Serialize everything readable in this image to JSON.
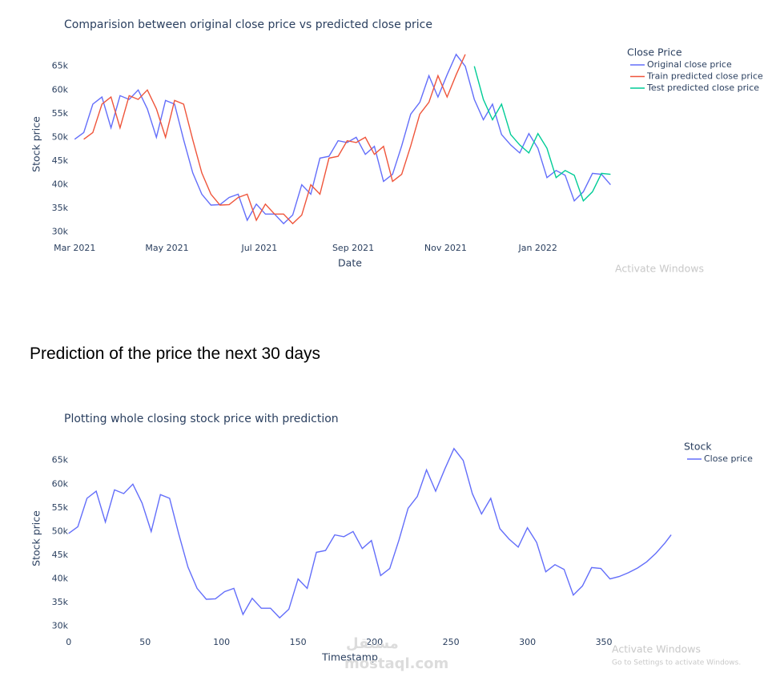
{
  "heading": "Prediction of the price the next 30 days",
  "watermarks": [
    "Activate Windows",
    "Activate Windows",
    "Go to Settings to activate Windows.",
    "mostaql.com",
    "مستقل"
  ],
  "chart_data": [
    {
      "type": "line",
      "title": "Comparision between original close price vs predicted close price",
      "x_label": "Date",
      "y_label": "Stock price",
      "legend_title": "Close Price",
      "legend": "top-right",
      "grid": false,
      "xlim": [
        "2021-02-22",
        "2022-02-22"
      ],
      "xticks": [
        {
          "value": "2021-03-01",
          "label": "Mar 2021"
        },
        {
          "value": "2021-05-01",
          "label": "May 2021"
        },
        {
          "value": "2021-07-01",
          "label": "Jul 2021"
        },
        {
          "value": "2021-09-01",
          "label": "Sep 2021"
        },
        {
          "value": "2021-11-01",
          "label": "Nov 2021"
        },
        {
          "value": "2022-01-01",
          "label": "Jan 2022"
        }
      ],
      "ylim": [
        28600,
        68500
      ],
      "yticks": [
        {
          "value": 30000,
          "label": "30k"
        },
        {
          "value": 35000,
          "label": "35k"
        },
        {
          "value": 40000,
          "label": "40k"
        },
        {
          "value": 45000,
          "label": "45k"
        },
        {
          "value": 50000,
          "label": "50k"
        },
        {
          "value": 55000,
          "label": "55k"
        },
        {
          "value": 60000,
          "label": "60k"
        },
        {
          "value": 65000,
          "label": "65k"
        }
      ],
      "series": [
        {
          "name": "Original close price",
          "color": "#636efa",
          "x": [
            "2021-03-01",
            "2021-03-07",
            "2021-03-13",
            "2021-03-19",
            "2021-03-25",
            "2021-03-31",
            "2021-04-06",
            "2021-04-12",
            "2021-04-18",
            "2021-04-24",
            "2021-04-30",
            "2021-05-06",
            "2021-05-12",
            "2021-05-18",
            "2021-05-24",
            "2021-05-30",
            "2021-06-05",
            "2021-06-11",
            "2021-06-17",
            "2021-06-23",
            "2021-06-29",
            "2021-07-05",
            "2021-07-11",
            "2021-07-17",
            "2021-07-23",
            "2021-07-29",
            "2021-08-04",
            "2021-08-10",
            "2021-08-16",
            "2021-08-22",
            "2021-08-28",
            "2021-09-03",
            "2021-09-09",
            "2021-09-15",
            "2021-09-21",
            "2021-09-27",
            "2021-10-03",
            "2021-10-09",
            "2021-10-15",
            "2021-10-21",
            "2021-10-27",
            "2021-11-02",
            "2021-11-08",
            "2021-11-14",
            "2021-11-20",
            "2021-11-26",
            "2021-12-02",
            "2021-12-08",
            "2021-12-14",
            "2021-12-20",
            "2021-12-26",
            "2022-01-01",
            "2022-01-07",
            "2022-01-13",
            "2022-01-19",
            "2022-01-25",
            "2022-01-31",
            "2022-02-06",
            "2022-02-12",
            "2022-02-18"
          ],
          "values": [
            49600,
            51000,
            57000,
            58500,
            52000,
            58800,
            58000,
            60000,
            56000,
            50000,
            57800,
            57000,
            49500,
            42500,
            38000,
            35700,
            35800,
            37300,
            38000,
            32500,
            35900,
            33800,
            33800,
            31800,
            33600,
            40000,
            38000,
            45600,
            46000,
            49300,
            48900,
            50000,
            46400,
            48100,
            40700,
            42200,
            48200,
            54900,
            57400,
            63000,
            58500,
            63200,
            67500,
            65000,
            58000,
            53700,
            57000,
            50600,
            48400,
            46700,
            50800,
            47700,
            41500,
            43000,
            42000,
            36600,
            38500,
            42400,
            42200,
            40000
          ]
        },
        {
          "name": "Train predicted close price",
          "color": "#ef553b",
          "x": [
            "2021-03-07",
            "2021-03-13",
            "2021-03-19",
            "2021-03-25",
            "2021-03-31",
            "2021-04-06",
            "2021-04-12",
            "2021-04-18",
            "2021-04-24",
            "2021-04-30",
            "2021-05-06",
            "2021-05-12",
            "2021-05-18",
            "2021-05-24",
            "2021-05-30",
            "2021-06-05",
            "2021-06-11",
            "2021-06-17",
            "2021-06-23",
            "2021-06-29",
            "2021-07-05",
            "2021-07-11",
            "2021-07-17",
            "2021-07-23",
            "2021-07-29",
            "2021-08-04",
            "2021-08-10",
            "2021-08-16",
            "2021-08-22",
            "2021-08-28",
            "2021-09-03",
            "2021-09-09",
            "2021-09-15",
            "2021-09-21",
            "2021-09-27",
            "2021-10-03",
            "2021-10-09",
            "2021-10-15",
            "2021-10-21",
            "2021-10-27",
            "2021-11-02",
            "2021-11-08",
            "2021-11-14"
          ],
          "values": [
            49600,
            51000,
            57000,
            58500,
            52000,
            58800,
            58000,
            60000,
            56000,
            50000,
            57800,
            57000,
            49500,
            42500,
            38000,
            35700,
            35800,
            37300,
            38000,
            32500,
            35900,
            33800,
            33800,
            31800,
            33600,
            40000,
            38000,
            45600,
            46000,
            49300,
            48900,
            50000,
            46400,
            48100,
            40700,
            42200,
            48200,
            54900,
            57400,
            63000,
            58500,
            63200,
            67500
          ]
        },
        {
          "name": "Test predicted close price",
          "color": "#00cc96",
          "x": [
            "2021-11-20",
            "2021-11-26",
            "2021-12-02",
            "2021-12-08",
            "2021-12-14",
            "2021-12-20",
            "2021-12-26",
            "2022-01-01",
            "2022-01-07",
            "2022-01-13",
            "2022-01-19",
            "2022-01-25",
            "2022-01-31",
            "2022-02-06",
            "2022-02-12",
            "2022-02-18"
          ],
          "values": [
            65000,
            58000,
            53700,
            57000,
            50600,
            48400,
            46700,
            50800,
            47700,
            41500,
            43000,
            42000,
            36600,
            38500,
            42400,
            42200
          ]
        }
      ]
    },
    {
      "type": "line",
      "title": "Plotting whole closing stock price with prediction",
      "x_label": "Timestamp",
      "y_label": "Stock price",
      "legend_title": "Stock",
      "legend": "top-right",
      "grid": false,
      "xlim": [
        -3,
        395
      ],
      "xticks": [
        0,
        50,
        100,
        150,
        200,
        250,
        300,
        350
      ],
      "ylim": [
        28600,
        68500
      ],
      "yticks": [
        {
          "value": 30000,
          "label": "30k"
        },
        {
          "value": 35000,
          "label": "35k"
        },
        {
          "value": 40000,
          "label": "40k"
        },
        {
          "value": 45000,
          "label": "45k"
        },
        {
          "value": 50000,
          "label": "50k"
        },
        {
          "value": 55000,
          "label": "55k"
        },
        {
          "value": 60000,
          "label": "60k"
        },
        {
          "value": 65000,
          "label": "65k"
        }
      ],
      "series": [
        {
          "name": "Close price",
          "color": "#636efa",
          "x": [
            0,
            6,
            12,
            18,
            24,
            30,
            36,
            42,
            48,
            54,
            60,
            66,
            72,
            78,
            84,
            90,
            96,
            102,
            108,
            114,
            120,
            126,
            132,
            138,
            144,
            150,
            156,
            162,
            168,
            174,
            180,
            186,
            192,
            198,
            204,
            210,
            216,
            222,
            228,
            234,
            240,
            246,
            252,
            258,
            264,
            270,
            276,
            282,
            288,
            294,
            300,
            306,
            312,
            318,
            324,
            330,
            336,
            342,
            348,
            354,
            360,
            366,
            372,
            378,
            384,
            390,
            394
          ],
          "values": [
            49600,
            51000,
            57000,
            58500,
            52000,
            58800,
            58000,
            60000,
            56000,
            50000,
            57800,
            57000,
            49500,
            42500,
            38000,
            35700,
            35800,
            37300,
            38000,
            32500,
            35900,
            33800,
            33800,
            31800,
            33600,
            40000,
            38000,
            45600,
            46000,
            49300,
            48900,
            50000,
            46400,
            48100,
            40700,
            42200,
            48200,
            54900,
            57400,
            63000,
            58500,
            63200,
            67500,
            65000,
            58000,
            53700,
            57000,
            50600,
            48400,
            46700,
            50800,
            47700,
            41500,
            43000,
            42000,
            36600,
            38500,
            42400,
            42200,
            40000,
            40500,
            41300,
            42300,
            43600,
            45400,
            47600,
            49300
          ]
        }
      ]
    }
  ]
}
